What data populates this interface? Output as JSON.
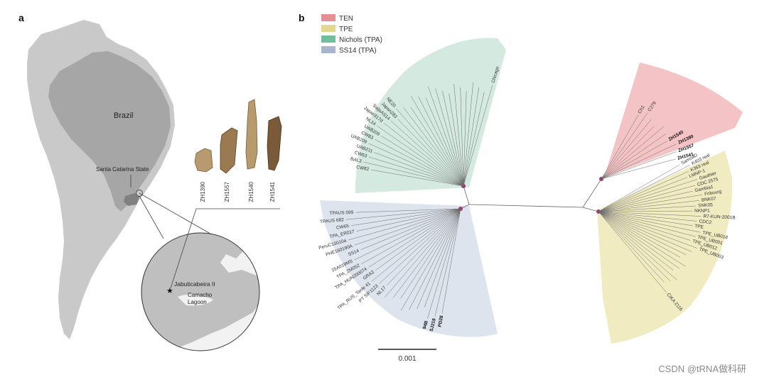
{
  "panels": {
    "a": {
      "letter": "a",
      "map": {
        "country_label": "Brazil",
        "state_label": "Santa Catarina State",
        "site_label": "Jabuticabeira II",
        "lagoon_label": "Camacho\nLagoon",
        "colors": {
          "land": "#c9c9c9",
          "brazil": "#a6a6a6",
          "state": "#808080",
          "inset_water": "#f2f2f2",
          "inset_land": "#bfbfbf"
        },
        "icons": {
          "site_marker": "star-icon",
          "inset_focus": "circle-marker-icon"
        }
      },
      "specimens": [
        {
          "id": "ZH1390"
        },
        {
          "id": "ZH1557"
        },
        {
          "id": "ZH1540"
        },
        {
          "id": "ZH1541"
        }
      ]
    },
    "b": {
      "letter": "b",
      "legend": [
        {
          "label": "TEN",
          "color": "#e58f92"
        },
        {
          "label": "TPE",
          "color": "#e2d98f"
        },
        {
          "label": "Nichols (TPA)",
          "color": "#6fbf9c"
        },
        {
          "label": "SS14 (TPA)",
          "color": "#a9b6cf"
        }
      ],
      "scale_bar": {
        "label": "0.001"
      },
      "clades": [
        {
          "name": "TEN",
          "fill": "#f2b9bb",
          "tips": [
            {
              "label": "Ch1",
              "bold": false
            },
            {
              "label": "C279",
              "bold": false
            },
            {
              "label": "",
              "bold": false
            },
            {
              "label": "",
              "bold": false
            },
            {
              "label": "",
              "bold": false
            },
            {
              "label": "",
              "bold": false
            },
            {
              "label": "ZH1540",
              "bold": true
            },
            {
              "label": "ZH1390",
              "bold": true
            },
            {
              "label": "ZH1557",
              "bold": true
            },
            {
              "label": "ZH1541",
              "bold": true
            }
          ]
        },
        {
          "name": "TPE",
          "fill": "#efe8b6",
          "tips": [
            {
              "label": "SamoaD",
              "bold": false
            },
            {
              "label": "K403 real",
              "bold": false
            },
            {
              "label": "K363 real",
              "bold": false
            },
            {
              "label": "LMNP-1",
              "bold": false
            },
            {
              "label": "Gauthier",
              "bold": false
            },
            {
              "label": "CDC 2575",
              "bold": false
            },
            {
              "label": "Gambia1",
              "bold": false
            },
            {
              "label": "Fribourg",
              "bold": false
            },
            {
              "label": "BNK07",
              "bold": false
            },
            {
              "label": "SNK05",
              "bold": false
            },
            {
              "label": "NKNP1",
              "bold": false
            },
            {
              "label": "R7-KUN-2001B",
              "bold": false
            },
            {
              "label": "CDC2",
              "bold": false
            },
            {
              "label": "TPE",
              "bold": false
            },
            {
              "label": "TPE_UB018",
              "bold": false
            },
            {
              "label": "TPE_UB001",
              "bold": false
            },
            {
              "label": "TPE_UB012",
              "bold": false
            },
            {
              "label": "TPE_UB003",
              "bold": false
            },
            {
              "label": "",
              "bold": false
            },
            {
              "label": "",
              "bold": false
            },
            {
              "label": "",
              "bold": false
            },
            {
              "label": "",
              "bold": false
            },
            {
              "label": "",
              "bold": false
            },
            {
              "label": "",
              "bold": false
            },
            {
              "label": "",
              "bold": false
            },
            {
              "label": "",
              "bold": false
            },
            {
              "label": "",
              "bold": false
            },
            {
              "label": "CIKA 2116",
              "bold": false
            }
          ]
        },
        {
          "name": "Nichols (TPA)",
          "fill": "#cde6dc",
          "tips": [
            {
              "label": "CW82",
              "bold": false
            },
            {
              "label": "BAL3",
              "bold": false
            },
            {
              "label": "CW63",
              "bold": false
            },
            {
              "label": "UAB211",
              "bold": false
            },
            {
              "label": "UAB209",
              "bold": false
            },
            {
              "label": "CW83",
              "bold": false
            },
            {
              "label": "UAB209",
              "bold": false
            },
            {
              "label": "NL14",
              "bold": false
            },
            {
              "label": "Japan317d",
              "bold": false
            },
            {
              "label": "SaijoAS14",
              "bold": false
            },
            {
              "label": "Japan283",
              "bold": false
            },
            {
              "label": "NE20",
              "bold": false
            },
            {
              "label": "",
              "bold": false
            },
            {
              "label": "",
              "bold": false
            },
            {
              "label": "",
              "bold": false
            },
            {
              "label": "",
              "bold": false
            },
            {
              "label": "",
              "bold": false
            },
            {
              "label": "",
              "bold": false
            },
            {
              "label": "",
              "bold": false
            },
            {
              "label": "",
              "bold": false
            },
            {
              "label": "",
              "bold": false
            },
            {
              "label": "",
              "bold": false
            },
            {
              "label": "",
              "bold": false
            },
            {
              "label": "",
              "bold": false
            },
            {
              "label": "",
              "bold": false
            },
            {
              "label": "",
              "bold": false
            },
            {
              "label": "",
              "bold": false
            },
            {
              "label": "Chicago",
              "bold": false
            }
          ]
        },
        {
          "name": "SS14 (TPA)",
          "fill": "#d8dfea",
          "tips": [
            {
              "label": "TPAUS 099",
              "bold": false
            },
            {
              "label": "TPAUS 682",
              "bold": false
            },
            {
              "label": "CW65",
              "bold": false
            },
            {
              "label": "TPA_ER017",
              "bold": false
            },
            {
              "label": "PeruC10010a",
              "bold": false
            },
            {
              "label": "PHE160190A",
              "bold": false
            },
            {
              "label": "SS14",
              "bold": false
            },
            {
              "label": "15A019MS",
              "bold": false
            },
            {
              "label": "TPA_ZM052",
              "bold": false
            },
            {
              "label": "TPA_HUN200074",
              "bold": false
            },
            {
              "label": "GRA2",
              "bold": false
            },
            {
              "label": "TPA_RUS_Tanle 41",
              "bold": false
            },
            {
              "label": "PT SIF1123",
              "bold": false
            },
            {
              "label": "NL17",
              "bold": false
            },
            {
              "label": "",
              "bold": false
            },
            {
              "label": "",
              "bold": false
            },
            {
              "label": "",
              "bold": false
            },
            {
              "label": "",
              "bold": false
            },
            {
              "label": "",
              "bold": false
            },
            {
              "label": "",
              "bold": false
            },
            {
              "label": "",
              "bold": false
            },
            {
              "label": "94B",
              "bold": true
            },
            {
              "label": "SJ219",
              "bold": true
            },
            {
              "label": "PD28",
              "bold": true
            }
          ]
        }
      ]
    }
  },
  "watermark": "CSDN @tRNA做科研"
}
